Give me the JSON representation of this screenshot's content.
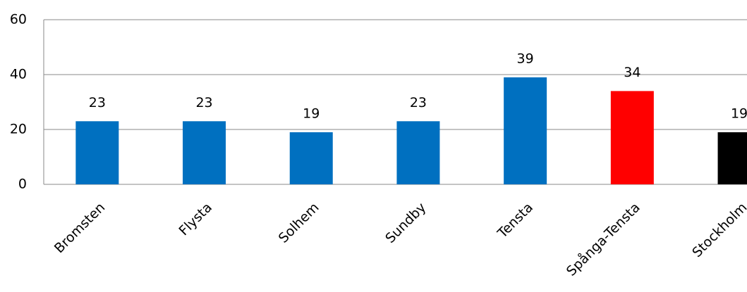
{
  "chart_data": {
    "type": "bar",
    "categories": [
      "Bromsten",
      "Flysta",
      "Solhem",
      "Sundby",
      "Tensta",
      "Spånga-Tensta",
      "Stockholm"
    ],
    "values": [
      23,
      23,
      19,
      23,
      39,
      34,
      19
    ],
    "colors": [
      "#0070c0",
      "#0070c0",
      "#0070c0",
      "#0070c0",
      "#0070c0",
      "#ff0000",
      "#000000"
    ],
    "ylim": [
      0,
      60
    ],
    "yticks": [
      0,
      20,
      40,
      60
    ],
    "grid": true
  }
}
